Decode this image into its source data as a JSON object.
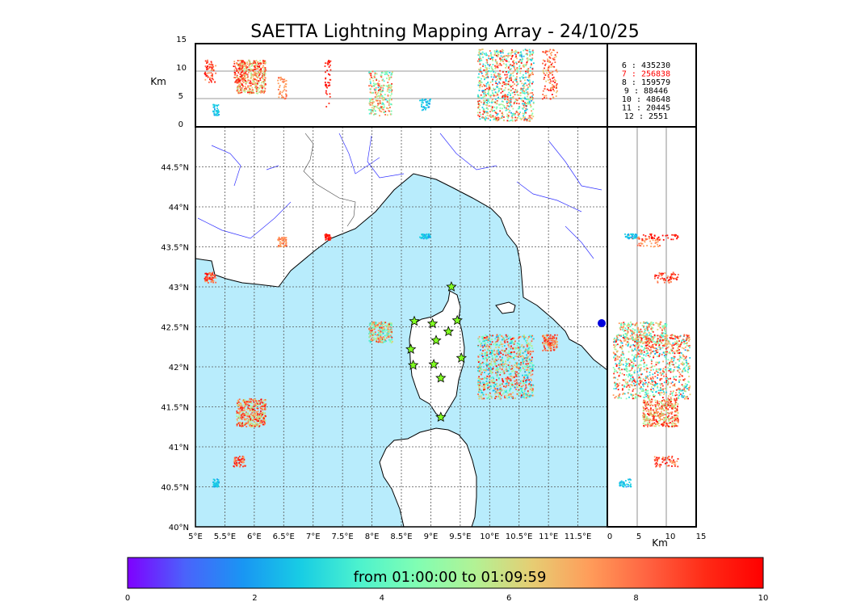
{
  "title": "SAETTA Lightning Mapping Array - 24/10/25",
  "colorbar": {
    "label": "from 01:00:00 to 01:09:59",
    "ticks": [
      "0",
      "2",
      "4",
      "6",
      "8",
      "10"
    ],
    "range": [
      0,
      10
    ],
    "colors": [
      "#7f00ff",
      "#4a63fb",
      "#1996f3",
      "#18cde4",
      "#4cf2ce",
      "#80feb3",
      "#b2f295",
      "#e6cd73",
      "#ff9c5a",
      "#ff6341",
      "#ff2a16",
      "#ff0000"
    ]
  },
  "top_panel": {
    "ylabel": "Km",
    "yticks": [
      "15",
      "10",
      "5",
      "0"
    ]
  },
  "side_panel": {
    "xlabel": "Km",
    "xticks": [
      "0",
      "5",
      "10",
      "15"
    ]
  },
  "map": {
    "lon_ticks": [
      "5°E",
      "5.5°E",
      "6°E",
      "6.5°E",
      "7°E",
      "7.5°E",
      "8°E",
      "8.5°E",
      "9°E",
      "9.5°E",
      "10°E",
      "10.5°E",
      "11°E",
      "11.5°E"
    ],
    "lat_ticks": [
      "44.5°N",
      "44°N",
      "43.5°N",
      "43°N",
      "42.5°N",
      "42°N",
      "41.5°N",
      "41°N",
      "40.5°N",
      "40°N"
    ],
    "extent": {
      "lon": [
        5,
        12
      ],
      "lat": [
        40,
        45
      ]
    },
    "sea_color": "#b8ecfc",
    "stations": [
      [
        9.35,
        43.0
      ],
      [
        8.72,
        42.57
      ],
      [
        9.03,
        42.54
      ],
      [
        9.45,
        42.58
      ],
      [
        9.3,
        42.44
      ],
      [
        9.09,
        42.33
      ],
      [
        8.66,
        42.22
      ],
      [
        9.52,
        42.11
      ],
      [
        8.7,
        42.02
      ],
      [
        9.05,
        42.03
      ],
      [
        9.17,
        41.86
      ],
      [
        9.17,
        41.37
      ]
    ]
  },
  "stats": [
    {
      "n": "6",
      "count": "435230",
      "color": "#000000"
    },
    {
      "n": "7",
      "count": "256838",
      "color": "#ff0000"
    },
    {
      "n": "8",
      "count": "159579",
      "color": "#000000"
    },
    {
      "n": "9",
      "count": "88446",
      "color": "#000000"
    },
    {
      "n": "10",
      "count": "48648",
      "color": "#000000"
    },
    {
      "n": "11",
      "count": "20445",
      "color": "#000000"
    },
    {
      "n": "12",
      "count": "2551",
      "color": "#000000"
    }
  ],
  "chart_data": {
    "type": "scatter",
    "title": "SAETTA Lightning Mapping Array - 24/10/25",
    "xlabel": "",
    "ylabel": "",
    "clusters": [
      {
        "lon": [
          5.15,
          5.35
        ],
        "lat": [
          43.05,
          43.18
        ],
        "alt": [
          8,
          12
        ],
        "hue": [
          7,
          10
        ]
      },
      {
        "lon": [
          5.7,
          6.2
        ],
        "lat": [
          41.25,
          41.6
        ],
        "alt": [
          6,
          12
        ],
        "hue": [
          5,
          10
        ]
      },
      {
        "lon": [
          5.65,
          5.85
        ],
        "lat": [
          40.75,
          40.88
        ],
        "alt": [
          8,
          12
        ],
        "hue": [
          7,
          10
        ]
      },
      {
        "lon": [
          6.4,
          6.55
        ],
        "lat": [
          43.5,
          43.62
        ],
        "alt": [
          5,
          9
        ],
        "hue": [
          7,
          8
        ]
      },
      {
        "lon": [
          7.2,
          7.3
        ],
        "lat": [
          43.58,
          43.66
        ],
        "alt": [
          3,
          12
        ],
        "hue": [
          9,
          10
        ]
      },
      {
        "lon": [
          7.95,
          8.35
        ],
        "lat": [
          42.3,
          42.56
        ],
        "alt": [
          2,
          10
        ],
        "hue": [
          3,
          9
        ]
      },
      {
        "lon": [
          9.8,
          10.75
        ],
        "lat": [
          41.6,
          42.4
        ],
        "alt": [
          1,
          14
        ],
        "hue": [
          2,
          10
        ]
      },
      {
        "lon": [
          10.9,
          11.15
        ],
        "lat": [
          42.2,
          42.4
        ],
        "alt": [
          5,
          14
        ],
        "hue": [
          6,
          10
        ]
      },
      {
        "lon": [
          8.8,
          9.0
        ],
        "lat": [
          43.6,
          43.66
        ],
        "alt": [
          3,
          5
        ],
        "hue": [
          2,
          3
        ]
      },
      {
        "lon": [
          5.3,
          5.4
        ],
        "lat": [
          40.5,
          40.6
        ],
        "alt": [
          2,
          4
        ],
        "hue": [
          2,
          3
        ]
      }
    ]
  }
}
